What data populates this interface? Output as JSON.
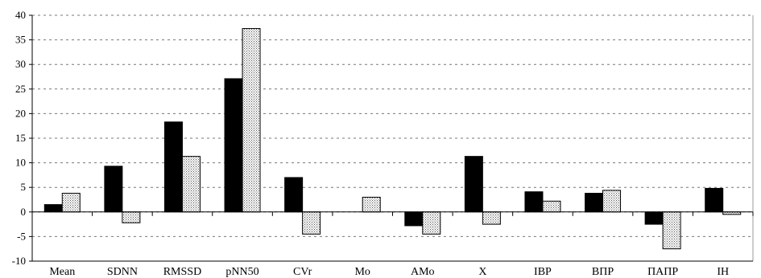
{
  "chart_data": {
    "type": "bar",
    "categories": [
      "Mean",
      "SDNN",
      "RMSSD",
      "pNN50",
      "CVr",
      "Mo",
      "AMo",
      "X",
      "IBP",
      "ВПР",
      "ПАПР",
      "IH"
    ],
    "series": [
      {
        "values": [
          1.5,
          9.3,
          18.3,
          27.1,
          7.0,
          0.0,
          -2.8,
          11.3,
          4.1,
          3.8,
          -2.5,
          4.8
        ],
        "color": "#000000",
        "pattern": "solid"
      },
      {
        "values": [
          3.8,
          -2.2,
          11.3,
          37.3,
          -4.5,
          3.0,
          -4.5,
          -2.5,
          2.2,
          4.4,
          -7.5,
          -0.5
        ],
        "color": "#ffffff",
        "pattern": "dotted"
      }
    ],
    "ylim": [
      -10,
      40
    ],
    "yticks": [
      "-10",
      "-5",
      "0",
      "5",
      "10",
      "15",
      "20",
      "25",
      "30",
      "35",
      "40"
    ],
    "grid": "horizontal-dashed",
    "legend": "none"
  }
}
